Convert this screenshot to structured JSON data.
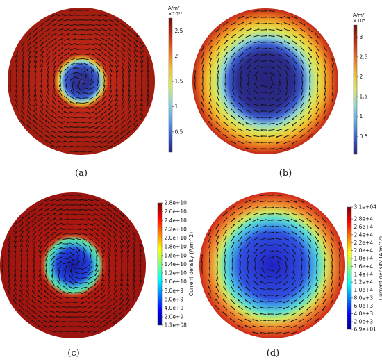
{
  "figure": {
    "panels": [
      {
        "id": "a",
        "caption": "(a)",
        "colorbar": {
          "unit": "A/m²",
          "multiplier": "×10¹⁰",
          "ticks": [
            "2.5",
            "2",
            "1.5",
            "1",
            "0.5"
          ],
          "tick_values": [
            2.5,
            2,
            1.5,
            1,
            0.5
          ],
          "min": 0.1,
          "max": 2.75,
          "palette": "rainbow"
        }
      },
      {
        "id": "b",
        "caption": "(b)",
        "colorbar": {
          "unit": "A/m²",
          "multiplier": "×10⁴",
          "ticks": [
            "3",
            "2.5",
            "2",
            "1.5",
            "1",
            "0.5"
          ],
          "tick_values": [
            3,
            2.5,
            2,
            1.5,
            1,
            0.5
          ],
          "min": 0.05,
          "max": 3.3,
          "palette": "rainbow"
        }
      },
      {
        "id": "c",
        "caption": "(c)",
        "colorbar": {
          "title": "Current density (A/m^2)",
          "ticks": [
            "2.8e+10",
            "2.6e+10",
            "2.4e+10",
            "2.2e+10",
            "2.0e+10",
            "1.8e+10",
            "1.6e+10",
            "1.4e+10",
            "1.2e+10",
            "1.0e+10",
            "8.0e+9",
            "6.0e+9",
            "4.0e+9",
            "2.0e+9",
            "1.1e+08"
          ],
          "tick_values": [
            28000000000.0,
            26000000000.0,
            24000000000.0,
            22000000000.0,
            20000000000.0,
            18000000000.0,
            16000000000.0,
            14000000000.0,
            12000000000.0,
            10000000000.0,
            8000000000.0,
            6000000000.0,
            4000000000.0,
            2000000000.0,
            110000000.0
          ],
          "min": 110000000.0,
          "max": 28000000000.0,
          "palette": "jet"
        }
      },
      {
        "id": "d",
        "caption": "(d)",
        "colorbar": {
          "title": "Current density (A/m^2)",
          "ticks": [
            "3.1e+04",
            "2.8e+4",
            "2.6e+4",
            "2.4e+4",
            "2.2e+4",
            "2.0e+4",
            "1.8e+4",
            "1.6e+4",
            "1.4e+4",
            "1.2e+4",
            "1.0e+4",
            "8.0e+3",
            "6.0e+3",
            "4.0e+3",
            "2.0e+3",
            "6.9e+01"
          ],
          "tick_values": [
            31000.0,
            28000.0,
            26000.0,
            24000.0,
            22000.0,
            20000.0,
            18000.0,
            16000.0,
            14000.0,
            12000.0,
            10000.0,
            8000.0,
            6000.0,
            4000.0,
            2000.0,
            69
          ],
          "min": 69,
          "max": 31000.0,
          "palette": "jet"
        }
      }
    ]
  },
  "colors": {
    "jet": [
      "#00008f",
      "#0000ff",
      "#0080ff",
      "#00ffff",
      "#80ff80",
      "#ffff00",
      "#ff8000",
      "#ff0000",
      "#800000"
    ],
    "rainbow": [
      "#26237a",
      "#3a5bd0",
      "#5fa8e0",
      "#8fd6d6",
      "#d8e860",
      "#f0c030",
      "#e87020",
      "#c02818",
      "#6a1408"
    ]
  }
}
